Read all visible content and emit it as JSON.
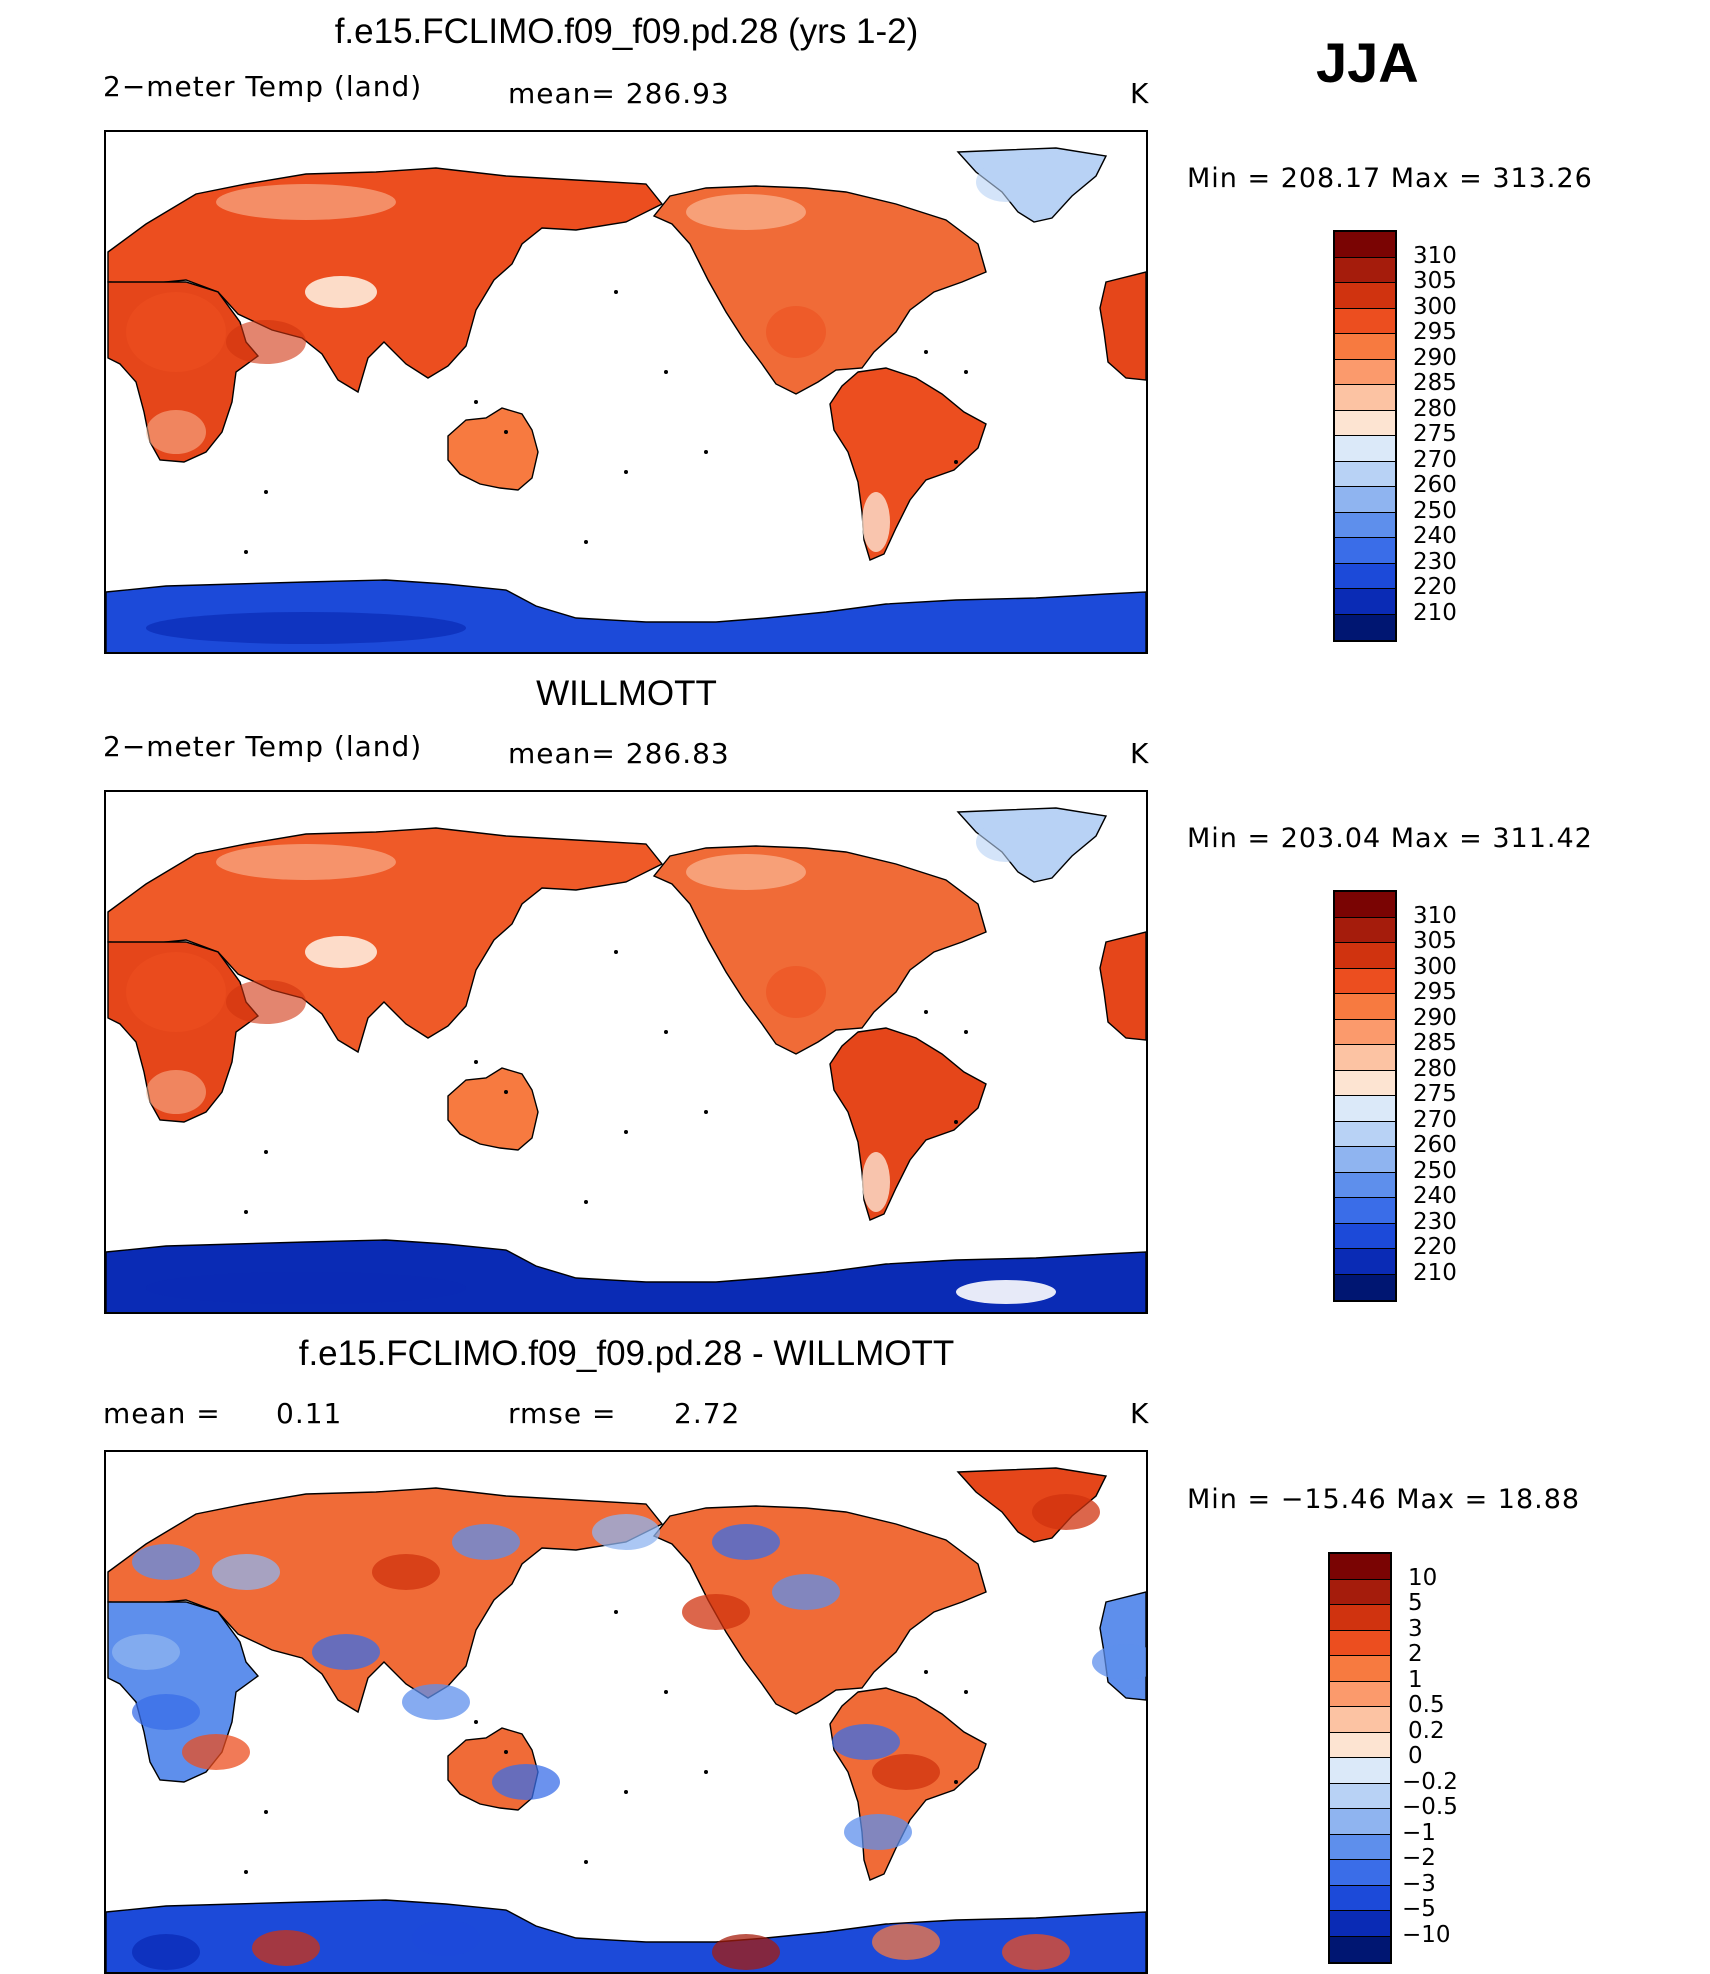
{
  "season": "JJA",
  "chart_data": [
    {
      "type": "heatmap",
      "title": "f.e15.FCLIMO.f09_f09.pd.28 (yrs 1-2)",
      "left_label": "2−meter Temp (land)",
      "center_label": "mean= 286.93",
      "right_label": "K",
      "minmax": "Min = 208.17 Max = 313.26",
      "colorbar_levels": [
        "310",
        "305",
        "300",
        "295",
        "290",
        "285",
        "280",
        "275",
        "270",
        "260",
        "250",
        "240",
        "230",
        "220",
        "210"
      ],
      "colorbar_colors": [
        "#7a0403",
        "#a51c0c",
        "#d0330f",
        "#ec4e1f",
        "#f77a40",
        "#fb9a6c",
        "#fcc3a3",
        "#fde4d2",
        "#dbe9f9",
        "#b8d2f5",
        "#8fb4f0",
        "#5e8fec",
        "#3a6de8",
        "#1c4ad9",
        "#0a2bb5",
        "#001672"
      ],
      "land_colors": {
        "eurasia": "#ec4e1f",
        "africa": "#e5461a",
        "north_america": "#f06b37",
        "south_america": "#ec4e1f",
        "australia": "#f77a40",
        "greenland": "#b8d2f5",
        "antarctica": "#1c4ad9"
      }
    },
    {
      "type": "heatmap",
      "title": "WILLMOTT",
      "left_label": "2−meter Temp (land)",
      "center_label": "mean= 286.83",
      "right_label": "K",
      "minmax": "Min = 203.04 Max = 311.42",
      "colorbar_levels": [
        "310",
        "305",
        "300",
        "295",
        "290",
        "285",
        "280",
        "275",
        "270",
        "260",
        "250",
        "240",
        "230",
        "220",
        "210"
      ],
      "colorbar_colors": [
        "#7a0403",
        "#a51c0c",
        "#d0330f",
        "#ec4e1f",
        "#f77a40",
        "#fb9a6c",
        "#fcc3a3",
        "#fde4d2",
        "#dbe9f9",
        "#b8d2f5",
        "#8fb4f0",
        "#5e8fec",
        "#3a6de8",
        "#1c4ad9",
        "#0a2bb5",
        "#001672"
      ],
      "land_colors": {
        "eurasia": "#ef5a28",
        "africa": "#e5461a",
        "north_america": "#f06b37",
        "south_america": "#e5461a",
        "australia": "#f77a40",
        "greenland": "#b8d2f5",
        "antarctica": "#0a2bb5"
      }
    },
    {
      "type": "heatmap",
      "title": "f.e15.FCLIMO.f09_f09.pd.28 - WILLMOTT",
      "left_label": "mean =",
      "left_value": "0.11",
      "center_label": "rmse =",
      "center_value": "2.72",
      "right_label": "K",
      "minmax": "Min = −15.46 Max =  18.88",
      "colorbar_levels": [
        "10",
        "5",
        "3",
        "2",
        "1",
        "0.5",
        "0.2",
        "0",
        "−0.2",
        "−0.5",
        "−1",
        "−2",
        "−3",
        "−5",
        "−10"
      ],
      "colorbar_colors": [
        "#7a0403",
        "#a51c0c",
        "#d0330f",
        "#ec4e1f",
        "#f77a40",
        "#fb9a6c",
        "#fcc3a3",
        "#fde4d2",
        "#dbe9f9",
        "#b8d2f5",
        "#8fb4f0",
        "#5e8fec",
        "#3a6de8",
        "#1c4ad9",
        "#0a2bb5",
        "#001672"
      ],
      "land_colors": {
        "eurasia": "#f06b37",
        "africa": "#5e8fec",
        "north_america": "#f06b37",
        "south_america": "#f06b37",
        "australia": "#f06b37",
        "greenland": "#e5461a",
        "antarctica": "#1c4ad9"
      }
    }
  ]
}
